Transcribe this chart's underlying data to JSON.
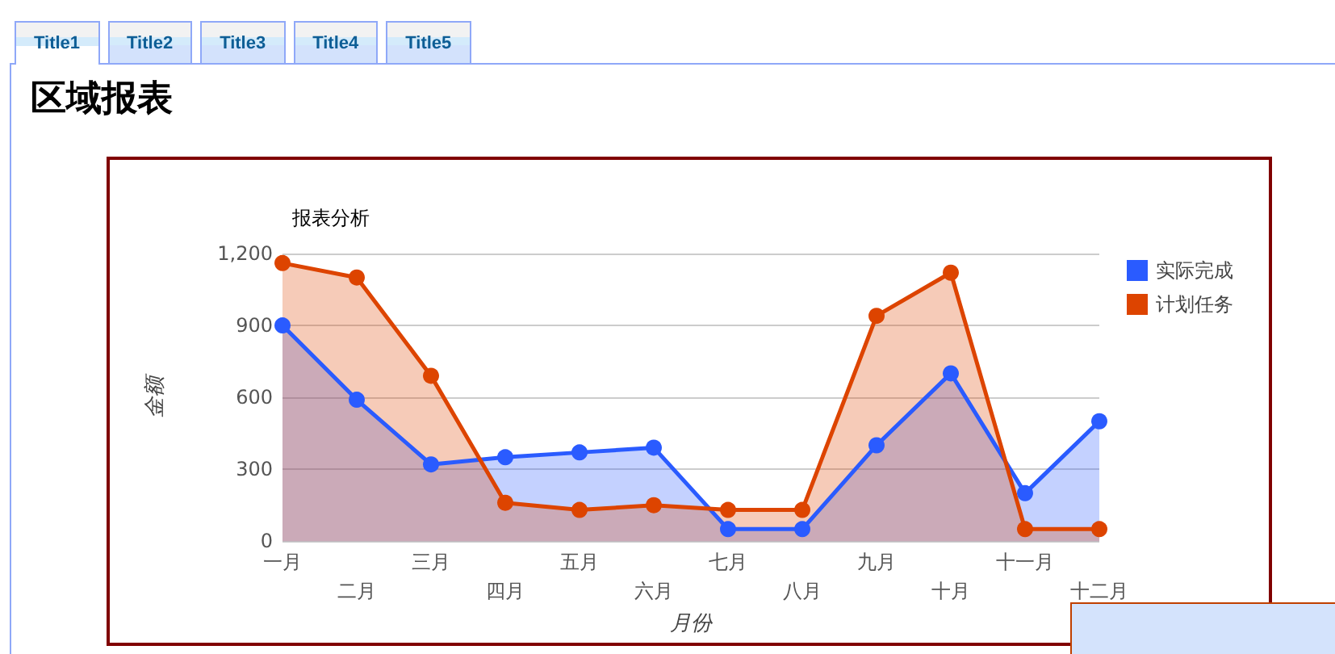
{
  "chart_data": {
    "type": "area",
    "title": "区域报表",
    "subtitle": "报表分析",
    "xlabel": "月份",
    "ylabel": "金额",
    "annotations": [
      "Title1",
      "Title2",
      "Title3",
      "Title4",
      "Title5"
    ],
    "categories": [
      "一月",
      "二月",
      "三月",
      "四月",
      "五月",
      "六月",
      "七月",
      "八月",
      "九月",
      "十月",
      "十一月",
      "十二月"
    ],
    "series": [
      {
        "name": "实际完成",
        "color": "#2a5bff",
        "values": [
          900,
          590,
          320,
          350,
          370,
          390,
          50,
          50,
          400,
          700,
          200,
          500
        ]
      },
      {
        "name": "计划任务",
        "color": "#dd4400",
        "values": [
          1160,
          1100,
          690,
          160,
          130,
          150,
          130,
          130,
          940,
          1120,
          50,
          50
        ]
      }
    ],
    "ylim": [
      0,
      1200
    ],
    "yticks": [
      0,
      300,
      600,
      900,
      {
        "value": 1200,
        "label": "1,200"
      }
    ],
    "grid": "y",
    "legend": "top right",
    "marker": "circle",
    "line_style": "solid"
  }
}
